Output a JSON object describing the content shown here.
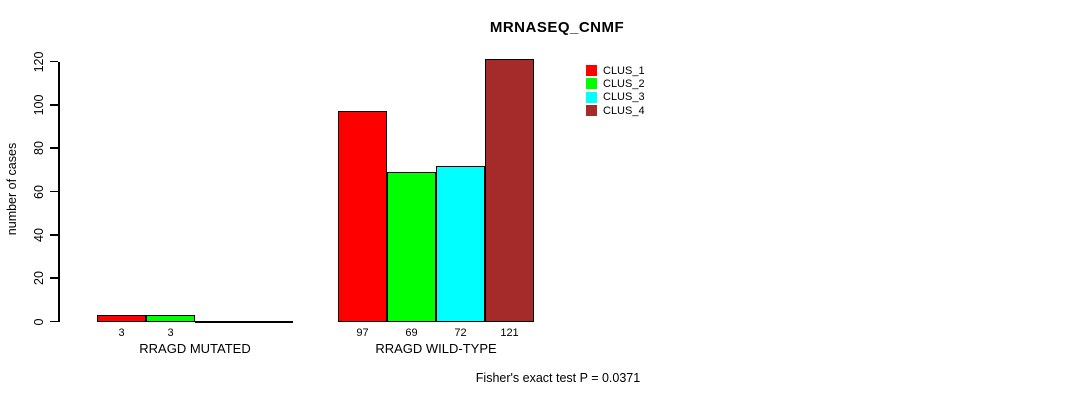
{
  "chart_data": {
    "type": "bar",
    "title": "MRNASEQ_CNMF",
    "xlabel": "",
    "ylabel": "number of cases",
    "ylim": [
      0,
      120
    ],
    "yticks": [
      0,
      20,
      40,
      60,
      80,
      100,
      120
    ],
    "grid": false,
    "legend_position": "top-right",
    "categories": [
      "RRAGD MUTATED",
      "RRAGD WILD-TYPE"
    ],
    "series": [
      {
        "name": "CLUS_1",
        "color": "#ff0000",
        "values": [
          3,
          97
        ]
      },
      {
        "name": "CLUS_2",
        "color": "#00ff00",
        "values": [
          3,
          69
        ]
      },
      {
        "name": "CLUS_3",
        "color": "#00ffff",
        "values": [
          0,
          72
        ]
      },
      {
        "name": "CLUS_4",
        "color": "#a52a2a",
        "values": [
          0,
          121
        ]
      }
    ],
    "bar_value_labels": [
      [
        "3",
        "3",
        "",
        ""
      ],
      [
        "97",
        "69",
        "72",
        "121"
      ]
    ],
    "annotation": "Fisher's exact test P = 0.0371"
  }
}
